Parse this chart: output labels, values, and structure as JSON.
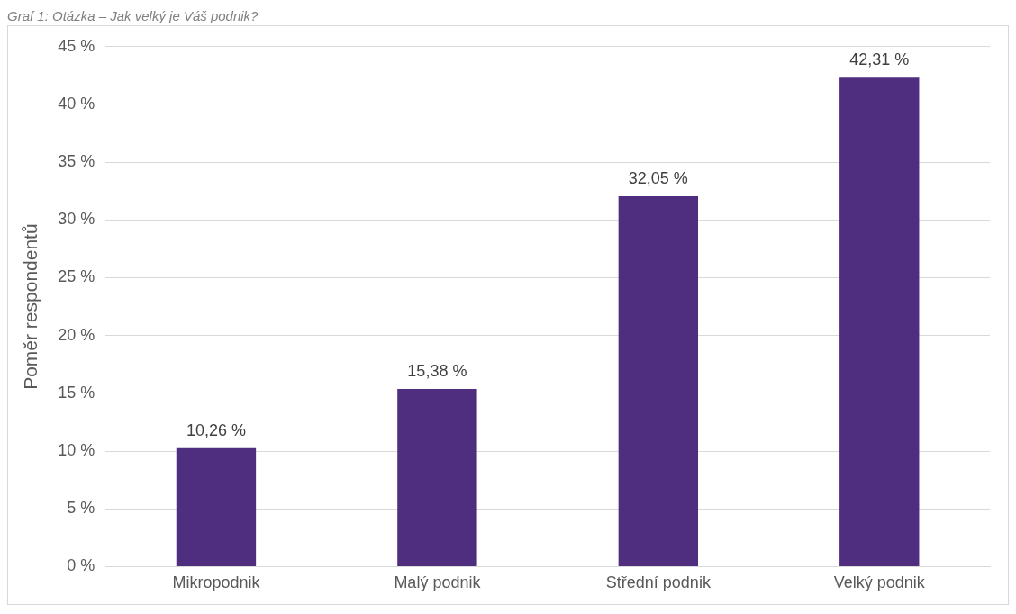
{
  "chart_data": {
    "type": "bar",
    "ylabel": "Poměr respondentů",
    "annotations": [
      "Graf 1: Otázka – Jak velký je Váš podnik?"
    ],
    "categories": [
      "Mikropodnik",
      "Malý podnik",
      "Střední podnik",
      "Velký podnik"
    ],
    "values": [
      10.26,
      15.38,
      32.05,
      42.31
    ],
    "value_labels": [
      "10,26 %",
      "15,38 %",
      "32,05 %",
      "42,31 %"
    ],
    "color": "#4f2d7f",
    "ylim": [
      0,
      45
    ],
    "yticks": [
      {
        "value": 0,
        "label": "0 %"
      },
      {
        "value": 5,
        "label": "5 %"
      },
      {
        "value": 10,
        "label": "10 %"
      },
      {
        "value": 15,
        "label": "15 %"
      },
      {
        "value": 20,
        "label": "20 %"
      },
      {
        "value": 25,
        "label": "25 %"
      },
      {
        "value": 30,
        "label": "30 %"
      },
      {
        "value": 35,
        "label": "35 %"
      },
      {
        "value": 40,
        "label": "40 %"
      },
      {
        "value": 45,
        "label": "45 %"
      }
    ],
    "grid": "y"
  }
}
